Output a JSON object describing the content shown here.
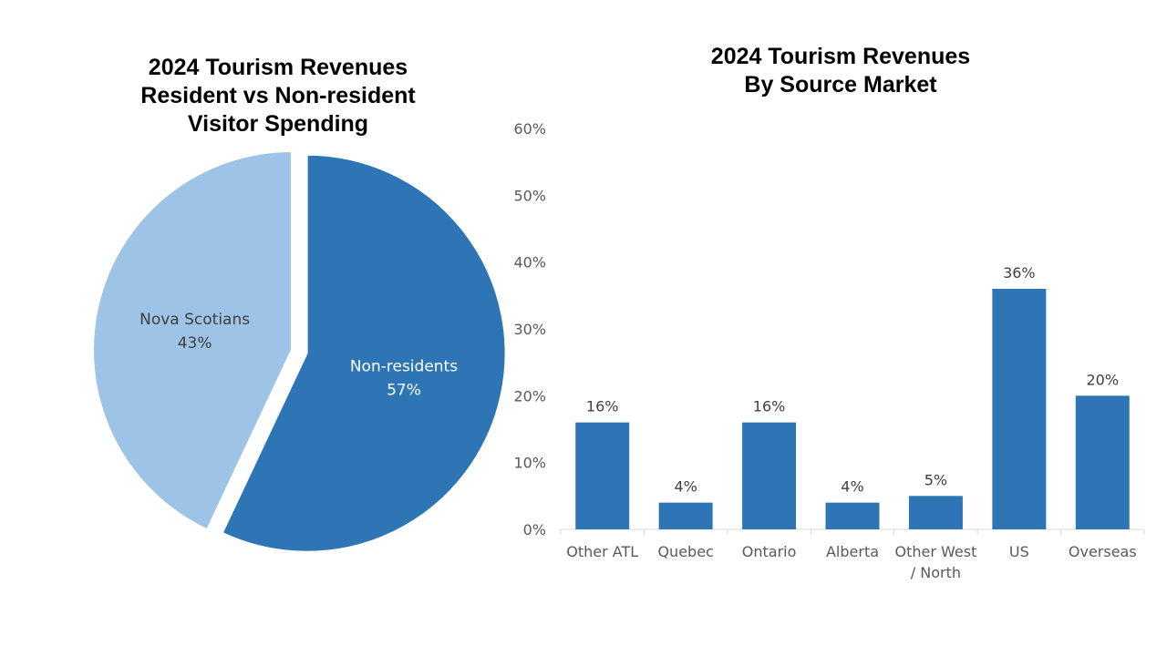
{
  "chart_data": [
    {
      "type": "pie",
      "title_lines": [
        "2024 Tourism Revenues",
        "Resident vs Non-resident",
        "Visitor Spending"
      ],
      "slices": [
        {
          "label": "Non-residents",
          "value": 57,
          "value_label": "57%",
          "color": "#2E75B6",
          "exploded": true
        },
        {
          "label": "Nova Scotians",
          "value": 43,
          "value_label": "43%",
          "color": "#9DC3E6",
          "exploded": false
        }
      ]
    },
    {
      "type": "bar",
      "title_lines": [
        "2024 Tourism Revenues",
        "By Source Market"
      ],
      "categories": [
        [
          "Other ATL"
        ],
        [
          "Quebec"
        ],
        [
          "Ontario"
        ],
        [
          "Alberta"
        ],
        [
          "Other West",
          "/ North"
        ],
        [
          "US"
        ],
        [
          "Overseas"
        ]
      ],
      "values": [
        16,
        4,
        16,
        4,
        5,
        36,
        20
      ],
      "value_labels": [
        "16%",
        "4%",
        "16%",
        "4%",
        "5%",
        "36%",
        "20%"
      ],
      "ylim": [
        0,
        60
      ],
      "yticks": [
        0,
        10,
        20,
        30,
        40,
        50,
        60
      ],
      "ytick_labels": [
        "0%",
        "10%",
        "20%",
        "30%",
        "40%",
        "50%",
        "60%"
      ],
      "bar_color": "#2E75B6",
      "grid": false,
      "xlabel": "",
      "ylabel": ""
    }
  ]
}
